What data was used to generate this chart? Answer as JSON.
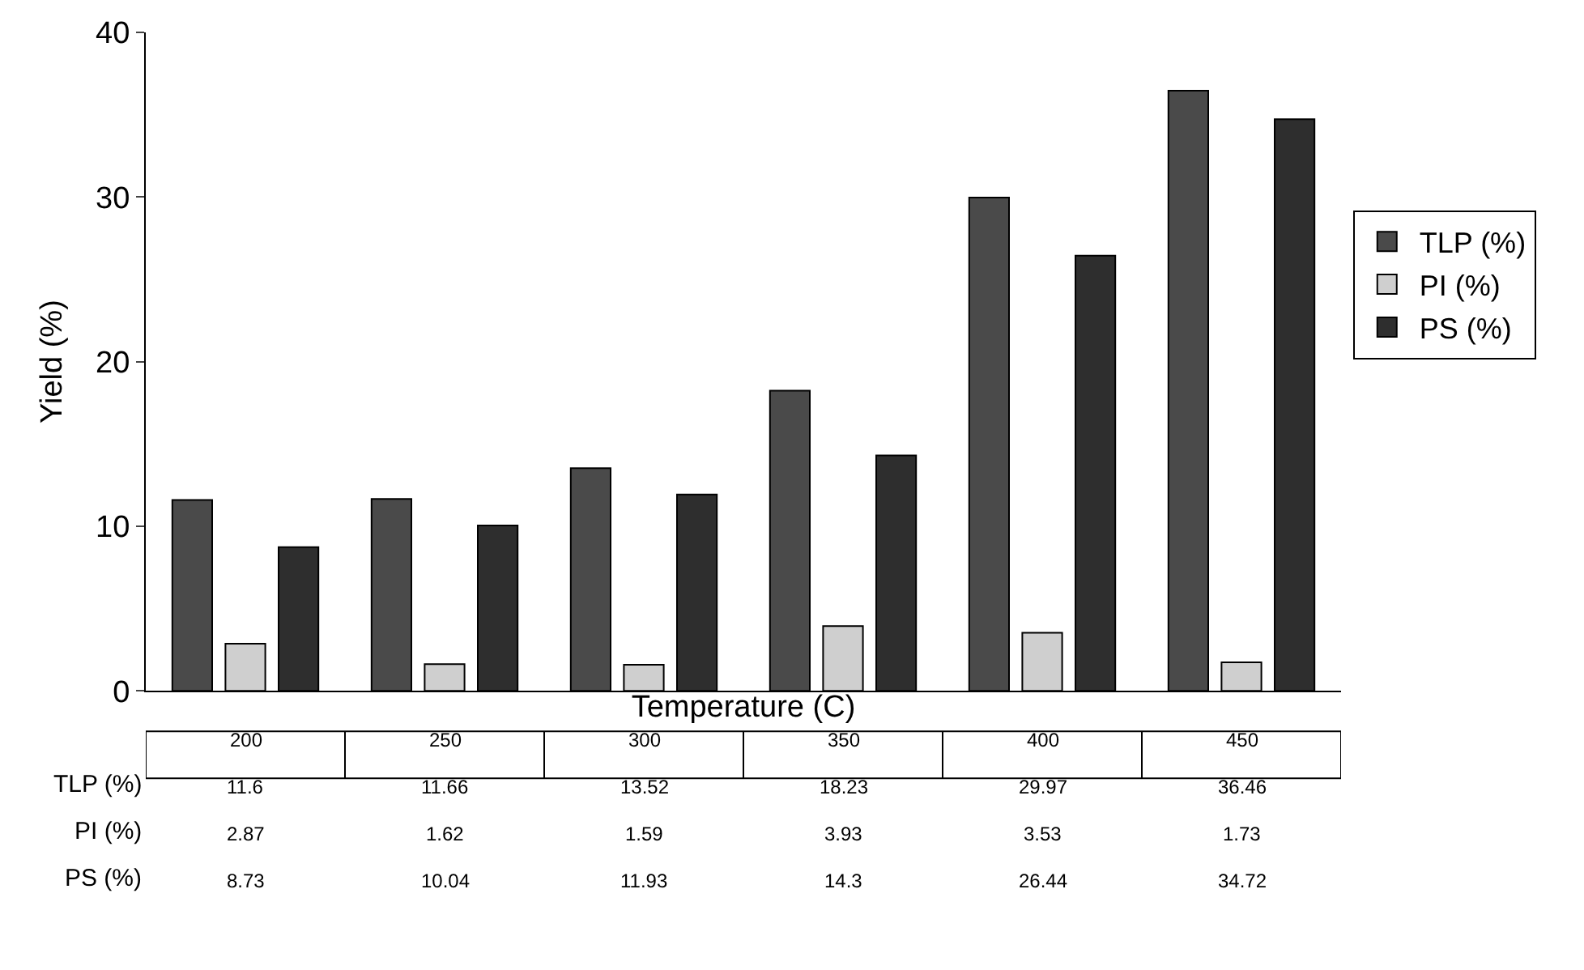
{
  "chart_data": {
    "type": "bar",
    "xlabel": "Temperature (C)",
    "ylabel": "Yield (%)",
    "categories": [
      "200",
      "250",
      "300",
      "350",
      "400",
      "450"
    ],
    "series": [
      {
        "name": "TLP (%)",
        "color": "#4a4a4a",
        "values": [
          11.6,
          11.66,
          13.52,
          18.23,
          29.97,
          36.46
        ]
      },
      {
        "name": "PI (%)",
        "color": "#cfcfcf",
        "values": [
          2.87,
          1.62,
          1.59,
          3.93,
          3.53,
          1.73
        ]
      },
      {
        "name": "PS (%)",
        "color": "#2e2e2e",
        "values": [
          8.73,
          10.04,
          11.93,
          14.3,
          26.44,
          34.72
        ]
      }
    ],
    "ylim": [
      0,
      40
    ],
    "yticks": [
      0,
      10,
      20,
      30,
      40
    ],
    "grid": false,
    "legend": "right",
    "tick_labels": "y",
    "data_labels": true
  }
}
